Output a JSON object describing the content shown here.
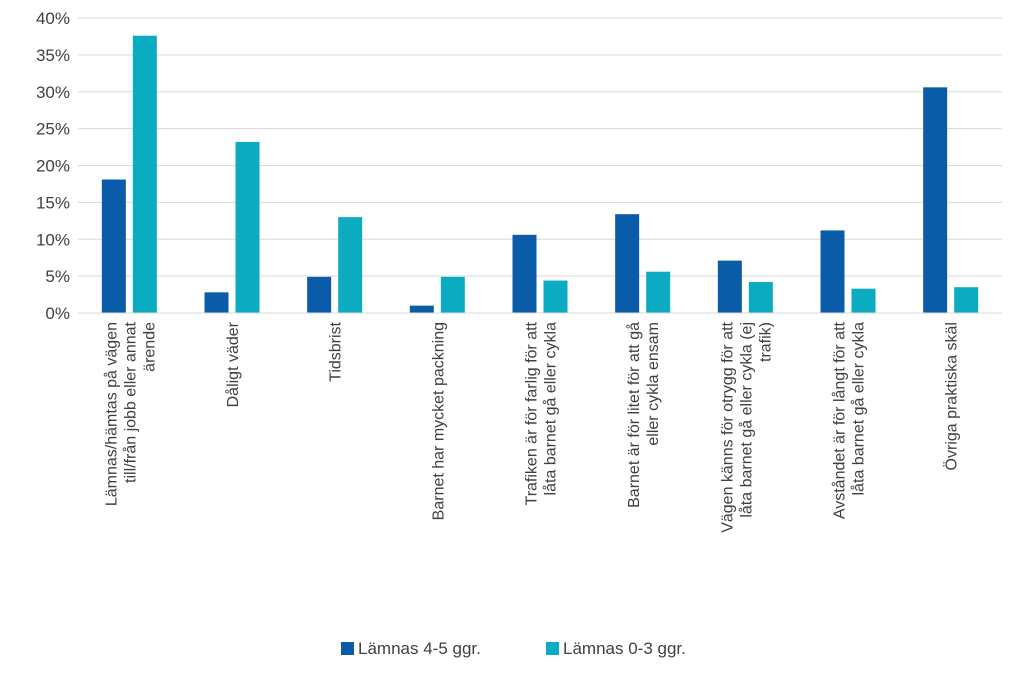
{
  "chart_data": {
    "type": "bar",
    "title": "",
    "xlabel": "",
    "ylabel": "",
    "ylim": [
      0,
      0.4
    ],
    "yticks": [
      "0%",
      "5%",
      "10%",
      "15%",
      "20%",
      "25%",
      "30%",
      "35%",
      "40%"
    ],
    "grid": true,
    "legend_position": "bottom",
    "categories": [
      [
        "Lämnas/hämtas på vägen",
        "till/från jobb eller annat",
        "ärende"
      ],
      [
        "Dåligt väder"
      ],
      [
        "Tidsbrist"
      ],
      [
        "Barnet har mycket packning"
      ],
      [
        "Trafiken är för farlig för att",
        "låta barnet gå eller cykla"
      ],
      [
        "Barnet är för litet för att gå",
        "eller cykla ensam"
      ],
      [
        "Vägen känns för otrygg för att",
        "låta barnet gå eller cykla (ej",
        "trafik)"
      ],
      [
        "Avståndet är för långt för att",
        "låta barnet gå eller cykla"
      ],
      [
        "Övriga praktiska skäl"
      ]
    ],
    "series": [
      {
        "name": "Lämnas 4-5 ggr.",
        "color": "#0b5ca8",
        "values": [
          0.181,
          0.028,
          0.049,
          0.01,
          0.106,
          0.134,
          0.071,
          0.112,
          0.306
        ]
      },
      {
        "name": "Lämnas 0-3 ggr.",
        "color": "#0bacc2",
        "values": [
          0.376,
          0.232,
          0.13,
          0.049,
          0.044,
          0.056,
          0.042,
          0.033,
          0.035
        ]
      }
    ]
  }
}
